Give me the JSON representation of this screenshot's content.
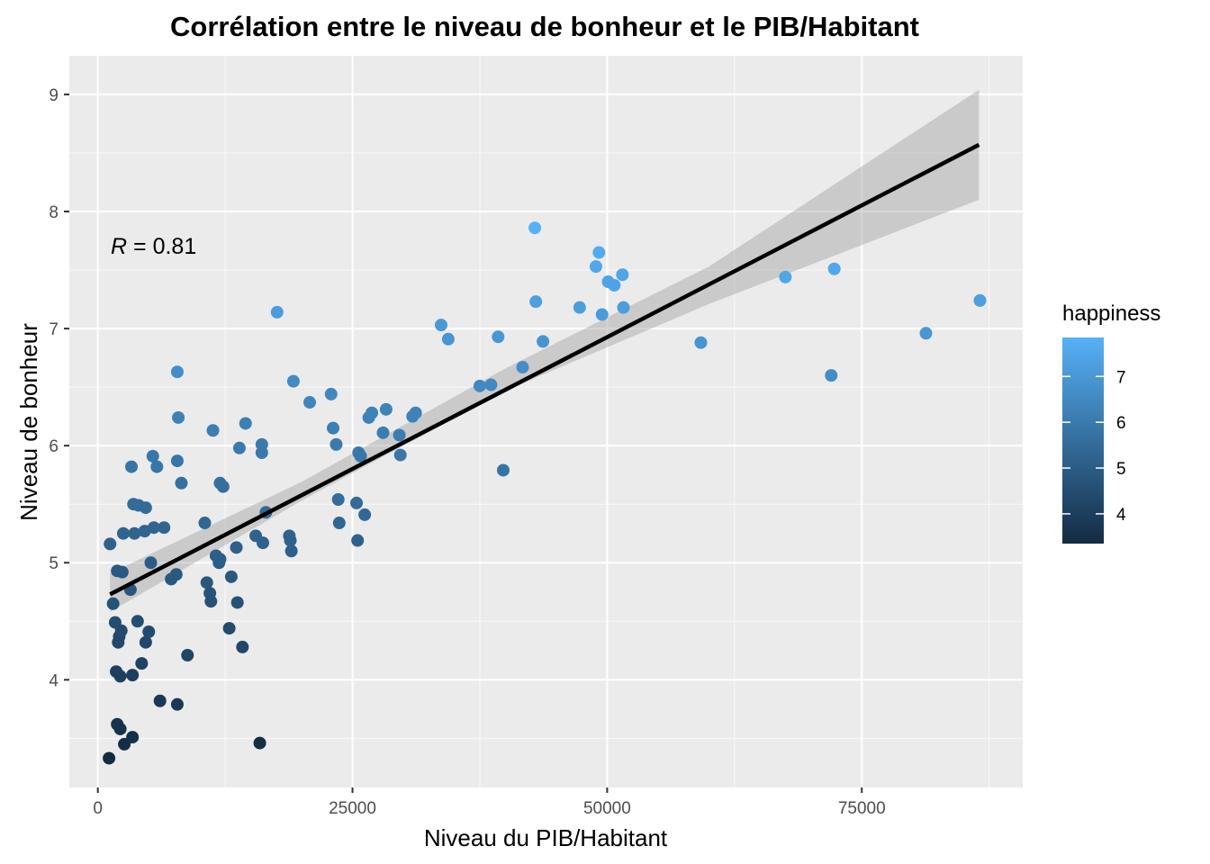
{
  "chart_data": {
    "type": "scatter",
    "title": "Corrélation entre le niveau de bonheur et le PIB/Habitant",
    "xlabel": "Niveau du PIB/Habitant",
    "ylabel": "Niveau de bonheur",
    "xlim": [
      -2800,
      90800
    ],
    "ylim": [
      3.08,
      9.33
    ],
    "xticks": [
      0,
      25000,
      50000,
      75000
    ],
    "xtick_labels": [
      "0",
      "25000",
      "50000",
      "75000"
    ],
    "yticks": [
      4,
      5,
      6,
      7,
      8,
      9
    ],
    "ytick_labels": [
      "4",
      "5",
      "6",
      "7",
      "8",
      "9"
    ],
    "grid": true,
    "annotation": {
      "r_symbol": "R",
      "equals": " = ",
      "value": "0.81"
    },
    "legend": {
      "title": "happiness",
      "placement": "right",
      "ticks": [
        4,
        5,
        6,
        7
      ],
      "tick_labels": [
        "4",
        "5",
        "6",
        "7"
      ],
      "range": [
        3.35,
        7.85
      ],
      "colors": [
        "#132B43",
        "#56B1F7"
      ]
    },
    "regression": {
      "x_start": 1200,
      "y_start": 4.73,
      "x_end": 86500,
      "y_end": 8.57,
      "band": [
        {
          "x": 1200,
          "lo": 4.58,
          "hi": 4.91
        },
        {
          "x": 20000,
          "lo": 5.53,
          "hi": 5.69
        },
        {
          "x": 40000,
          "lo": 6.47,
          "hi": 6.66
        },
        {
          "x": 60000,
          "lo": 7.21,
          "hi": 7.53
        },
        {
          "x": 86500,
          "lo": 8.1,
          "hi": 9.04
        }
      ]
    },
    "points": [
      {
        "x": 1100,
        "y": 3.33
      },
      {
        "x": 1200,
        "y": 5.16
      },
      {
        "x": 1500,
        "y": 4.65
      },
      {
        "x": 1700,
        "y": 4.49
      },
      {
        "x": 1800,
        "y": 4.07
      },
      {
        "x": 1900,
        "y": 4.93
      },
      {
        "x": 1900,
        "y": 3.62
      },
      {
        "x": 2000,
        "y": 4.32
      },
      {
        "x": 2100,
        "y": 4.37
      },
      {
        "x": 2200,
        "y": 4.03
      },
      {
        "x": 2200,
        "y": 3.58
      },
      {
        "x": 2300,
        "y": 4.42
      },
      {
        "x": 2400,
        "y": 4.92
      },
      {
        "x": 2500,
        "y": 5.25
      },
      {
        "x": 2600,
        "y": 3.45
      },
      {
        "x": 3200,
        "y": 4.77
      },
      {
        "x": 3300,
        "y": 5.82
      },
      {
        "x": 3400,
        "y": 4.04
      },
      {
        "x": 3400,
        "y": 3.51
      },
      {
        "x": 3500,
        "y": 5.5
      },
      {
        "x": 3600,
        "y": 5.25
      },
      {
        "x": 3900,
        "y": 4.5
      },
      {
        "x": 4000,
        "y": 5.49
      },
      {
        "x": 4300,
        "y": 4.14
      },
      {
        "x": 4600,
        "y": 5.27
      },
      {
        "x": 4700,
        "y": 4.32
      },
      {
        "x": 4700,
        "y": 5.47
      },
      {
        "x": 5000,
        "y": 4.41
      },
      {
        "x": 5200,
        "y": 5.0
      },
      {
        "x": 5400,
        "y": 5.91
      },
      {
        "x": 5500,
        "y": 5.3
      },
      {
        "x": 5800,
        "y": 5.82
      },
      {
        "x": 6100,
        "y": 3.82
      },
      {
        "x": 6500,
        "y": 5.3
      },
      {
        "x": 7200,
        "y": 4.86
      },
      {
        "x": 7700,
        "y": 4.9
      },
      {
        "x": 7800,
        "y": 5.87
      },
      {
        "x": 7800,
        "y": 6.63
      },
      {
        "x": 7800,
        "y": 3.79
      },
      {
        "x": 7900,
        "y": 6.24
      },
      {
        "x": 8200,
        "y": 5.68
      },
      {
        "x": 8800,
        "y": 4.21
      },
      {
        "x": 10500,
        "y": 5.34
      },
      {
        "x": 10700,
        "y": 4.83
      },
      {
        "x": 11000,
        "y": 4.74
      },
      {
        "x": 11100,
        "y": 4.67
      },
      {
        "x": 11300,
        "y": 6.13
      },
      {
        "x": 11600,
        "y": 5.06
      },
      {
        "x": 11900,
        "y": 5.0
      },
      {
        "x": 12000,
        "y": 5.68
      },
      {
        "x": 12000,
        "y": 5.03
      },
      {
        "x": 12300,
        "y": 5.65
      },
      {
        "x": 12900,
        "y": 4.44
      },
      {
        "x": 13100,
        "y": 4.88
      },
      {
        "x": 13600,
        "y": 5.13
      },
      {
        "x": 13700,
        "y": 4.66
      },
      {
        "x": 13900,
        "y": 5.98
      },
      {
        "x": 14200,
        "y": 4.28
      },
      {
        "x": 14500,
        "y": 6.19
      },
      {
        "x": 15500,
        "y": 5.23
      },
      {
        "x": 15900,
        "y": 3.46
      },
      {
        "x": 16100,
        "y": 5.94
      },
      {
        "x": 16100,
        "y": 6.01
      },
      {
        "x": 16200,
        "y": 5.17
      },
      {
        "x": 16500,
        "y": 5.43
      },
      {
        "x": 17600,
        "y": 7.14
      },
      {
        "x": 18800,
        "y": 5.23
      },
      {
        "x": 18900,
        "y": 5.19
      },
      {
        "x": 19000,
        "y": 5.1
      },
      {
        "x": 19200,
        "y": 6.55
      },
      {
        "x": 20800,
        "y": 6.37
      },
      {
        "x": 22900,
        "y": 6.44
      },
      {
        "x": 23100,
        "y": 6.15
      },
      {
        "x": 23400,
        "y": 6.01
      },
      {
        "x": 23600,
        "y": 5.54
      },
      {
        "x": 23700,
        "y": 5.34
      },
      {
        "x": 25400,
        "y": 5.51
      },
      {
        "x": 25500,
        "y": 5.19
      },
      {
        "x": 25600,
        "y": 5.94
      },
      {
        "x": 25800,
        "y": 5.91
      },
      {
        "x": 26200,
        "y": 5.41
      },
      {
        "x": 26600,
        "y": 6.24
      },
      {
        "x": 26900,
        "y": 6.28
      },
      {
        "x": 28000,
        "y": 6.11
      },
      {
        "x": 28300,
        "y": 6.31
      },
      {
        "x": 29600,
        "y": 6.09
      },
      {
        "x": 29700,
        "y": 5.92
      },
      {
        "x": 30900,
        "y": 6.25
      },
      {
        "x": 31200,
        "y": 6.28
      },
      {
        "x": 33700,
        "y": 7.03
      },
      {
        "x": 34400,
        "y": 6.91
      },
      {
        "x": 37500,
        "y": 6.51
      },
      {
        "x": 38600,
        "y": 6.52
      },
      {
        "x": 39300,
        "y": 6.93
      },
      {
        "x": 39800,
        "y": 5.79
      },
      {
        "x": 41700,
        "y": 6.67
      },
      {
        "x": 42900,
        "y": 7.86
      },
      {
        "x": 43000,
        "y": 7.23
      },
      {
        "x": 43700,
        "y": 6.89
      },
      {
        "x": 47300,
        "y": 7.18
      },
      {
        "x": 48900,
        "y": 7.53
      },
      {
        "x": 49200,
        "y": 7.65
      },
      {
        "x": 49500,
        "y": 7.12
      },
      {
        "x": 50100,
        "y": 7.4
      },
      {
        "x": 50700,
        "y": 7.37
      },
      {
        "x": 51500,
        "y": 7.46
      },
      {
        "x": 51600,
        "y": 7.18
      },
      {
        "x": 59200,
        "y": 6.88
      },
      {
        "x": 67500,
        "y": 7.44
      },
      {
        "x": 72000,
        "y": 6.6
      },
      {
        "x": 72300,
        "y": 7.51
      },
      {
        "x": 81300,
        "y": 6.96
      },
      {
        "x": 86600,
        "y": 7.24
      }
    ]
  }
}
